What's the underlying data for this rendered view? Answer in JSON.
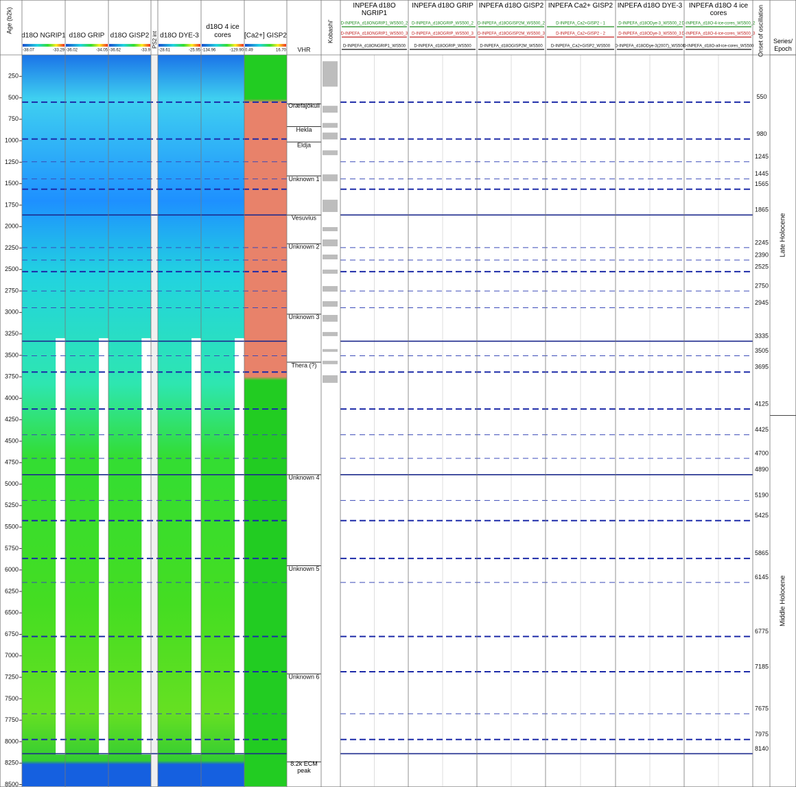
{
  "axis": {
    "title": "Age (b2k)",
    "range": [
      0,
      8520
    ],
    "ticks": [
      250,
      500,
      750,
      1000,
      1250,
      1500,
      1750,
      2000,
      2250,
      2500,
      2750,
      3000,
      3250,
      3500,
      3750,
      4000,
      4250,
      4500,
      4750,
      5000,
      5250,
      5500,
      5750,
      6000,
      6250,
      6500,
      6750,
      7000,
      7250,
      7500,
      7750,
      8000,
      8250,
      8500
    ]
  },
  "columns": [
    {
      "title": "d18O NGRIP1",
      "min": "-38.07",
      "max": "-33.29"
    },
    {
      "title": "d18O GRIP",
      "min": "-36.02",
      "max": "-34.05"
    },
    {
      "title": "d18O GISP2",
      "min": "-36.62",
      "max": "-33.9"
    },
    {
      "title": "d18O DYE-3",
      "min": "-28.61",
      "max": "-25.95"
    },
    {
      "title": "d18O 4 ice cores",
      "min": "-134.96",
      "max": "-129.90"
    },
    {
      "title": "[Ca2+] GISP2",
      "min": "0.49",
      "max": "16.70"
    }
  ],
  "ps2_label": "PS2 int",
  "vhr": {
    "title": "VHR",
    "events": [
      {
        "label": "Oræfajökull",
        "age": 570
      },
      {
        "label": "Hekla",
        "age": 835
      },
      {
        "label": "Eldja",
        "age": 1015
      },
      {
        "label": "Unknown 1",
        "age": 1410
      },
      {
        "label": "Vesuvius",
        "age": 1865
      },
      {
        "label": "Unknown 2",
        "age": 2200
      },
      {
        "label": "Unknown 3",
        "age": 3020
      },
      {
        "label": "Thera (?)",
        "age": 3580
      },
      {
        "label": "Unknown 4",
        "age": 4890
      },
      {
        "label": "Unknown 5",
        "age": 5950
      },
      {
        "label": "Unknown 6",
        "age": 7210
      },
      {
        "label": "8.2k ECM peak",
        "age": 8235
      }
    ]
  },
  "kobashi": {
    "title": "Kobashi'",
    "blocks": [
      {
        "from": 74,
        "to": 370
      },
      {
        "from": 593,
        "to": 673
      },
      {
        "from": 793,
        "to": 849
      },
      {
        "from": 905,
        "to": 985
      },
      {
        "from": 1112,
        "to": 1168
      },
      {
        "from": 1392,
        "to": 1472
      },
      {
        "from": 1687,
        "to": 1830
      },
      {
        "from": 2006,
        "to": 2054
      },
      {
        "from": 2150,
        "to": 2230
      },
      {
        "from": 2326,
        "to": 2382
      },
      {
        "from": 2501,
        "to": 2549
      },
      {
        "from": 2693,
        "to": 2757
      },
      {
        "from": 2869,
        "to": 2933
      },
      {
        "from": 3029,
        "to": 3108
      },
      {
        "from": 3228,
        "to": 3276
      },
      {
        "from": 3427,
        "to": 3459
      },
      {
        "from": 3563,
        "to": 3603
      },
      {
        "from": 3732,
        "to": 3820
      }
    ]
  },
  "inpefa": [
    {
      "title": "INPEFA d18O NGRIP1",
      "curves": [
        "D-INPEFA_d18ONGRIP1_WS500_2",
        "D-INPEFA_d18ONGRIP1_WS500_3",
        "D-INPEFA_d18ONGRIP1_WS500"
      ]
    },
    {
      "title": "INPEFA d18O GRIP",
      "curves": [
        "D-INPEFA_d18OGRIP_WS500_2",
        "D-INPEFA_d18OGRIP_WS500_3",
        "D-INPEFA_d18OGRIP_WS500"
      ]
    },
    {
      "title": "INPEFA d18O GISP2",
      "curves": [
        "D-INPEFA_d18OGISP2M_WS500_2",
        "D-INPEFA_d18OGISP2M_WS500_3",
        "D-INPEFA_d18OGISP2M_WS500"
      ]
    },
    {
      "title": "INPEFA Ca2+ GISP2",
      "curves": [
        "D-INPEFA_Ca2+GISP2 - 1",
        "D-INPEFA_Ca2+GISP2 - 2",
        "D-INPEFA_Ca2+GISP2_WS500"
      ]
    },
    {
      "title": "INPEFA d18O DYE-3",
      "curves": [
        "D-INPEFA_d18ODye-3_WS500_2",
        "D-INPEFA_d18ODye-3_WS500_3",
        "D-INPEFA_d18ODye-3(2007)_WS500"
      ]
    },
    {
      "title": "INPEFA d18O 4 ice cores",
      "curves": [
        "D-INPEFA_d18O-4-ice-cores_WS500_2",
        "D-INPEFA_d18O-4-ice-cores_WS500_3",
        "D-INPEFA_d18O-all-ice-cores_WS500"
      ]
    }
  ],
  "onsets": {
    "title": "Onset of oscillation",
    "boundaries": [
      {
        "age": 550,
        "style": "dashed-bold"
      },
      {
        "age": 980,
        "style": "dashed-bold"
      },
      {
        "age": 1245,
        "style": "dashed"
      },
      {
        "age": 1445,
        "style": "dashed"
      },
      {
        "age": 1565,
        "style": "dashed-bold"
      },
      {
        "age": 1865,
        "style": "solid"
      },
      {
        "age": 2245,
        "style": "dashed"
      },
      {
        "age": 2390,
        "style": "dashed"
      },
      {
        "age": 2525,
        "style": "dashed-bold"
      },
      {
        "age": 2750,
        "style": "dashed"
      },
      {
        "age": 2945,
        "style": "dashed"
      },
      {
        "age": 3335,
        "style": "solid"
      },
      {
        "age": 3505,
        "style": "dashed"
      },
      {
        "age": 3695,
        "style": "dashed-bold"
      },
      {
        "age": 4125,
        "style": "dashed-bold"
      },
      {
        "age": 4425,
        "style": "dashed"
      },
      {
        "age": 4700,
        "style": "dashed"
      },
      {
        "age": 4890,
        "style": "solid"
      },
      {
        "age": 5190,
        "style": "dashed"
      },
      {
        "age": 5425,
        "style": "dashed-bold"
      },
      {
        "age": 5865,
        "style": "dashed-bold"
      },
      {
        "age": 6145,
        "style": "dashed"
      },
      {
        "age": 6775,
        "style": "dashed-bold"
      },
      {
        "age": 7185,
        "style": "dashed-bold"
      },
      {
        "age": 7675,
        "style": "dashed"
      },
      {
        "age": 7975,
        "style": "dashed-bold"
      },
      {
        "age": 8140,
        "style": "solid"
      }
    ]
  },
  "series": {
    "title": "Series/ Epoch",
    "epochs": [
      {
        "label": "Late Holocene",
        "from": 0,
        "to": 4200
      },
      {
        "label": "Middle Holocene",
        "from": 4200,
        "to": 8520
      }
    ]
  }
}
